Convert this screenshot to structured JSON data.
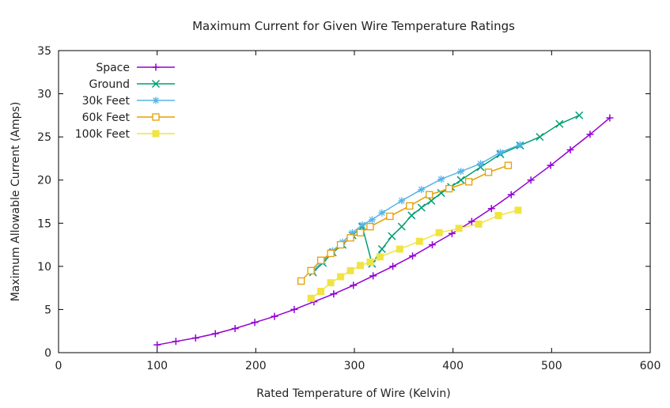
{
  "chart_data": {
    "type": "line",
    "title": "Maximum Current for Given Wire Temperature Ratings",
    "xlabel": "Rated Temperature of Wire (Kelvin)",
    "ylabel": "Maximum Allowable Current (Amps)",
    "xlim": [
      0,
      600
    ],
    "ylim": [
      0,
      35
    ],
    "xticks": [
      0,
      100,
      200,
      300,
      400,
      500,
      600
    ],
    "yticks": [
      0,
      5,
      10,
      15,
      20,
      25,
      30,
      35
    ],
    "grid": false,
    "legend_position": "top-left",
    "series": [
      {
        "name": "Space",
        "color": "#9400d3",
        "marker": "plus",
        "points": [
          [
            100,
            0.9
          ],
          [
            119,
            1.3
          ],
          [
            139,
            1.7
          ],
          [
            159,
            2.2
          ],
          [
            179,
            2.8
          ],
          [
            199,
            3.5
          ],
          [
            219,
            4.2
          ],
          [
            239,
            5.0
          ],
          [
            259,
            5.9
          ],
          [
            279,
            6.8
          ],
          [
            299,
            7.8
          ],
          [
            319,
            8.9
          ],
          [
            339,
            10.0
          ],
          [
            359,
            11.2
          ],
          [
            379,
            12.5
          ],
          [
            399,
            13.8
          ],
          [
            419,
            15.2
          ],
          [
            439,
            16.7
          ],
          [
            459,
            18.3
          ],
          [
            479,
            20.0
          ],
          [
            499,
            21.7
          ],
          [
            519,
            23.5
          ],
          [
            539,
            25.3
          ],
          [
            559,
            27.2
          ]
        ]
      },
      {
        "name": "Ground",
        "color": "#009e73",
        "marker": "cross",
        "points": [
          [
            258,
            9.3
          ],
          [
            268,
            10.4
          ],
          [
            278,
            11.6
          ],
          [
            288,
            12.5
          ],
          [
            298,
            13.6
          ],
          [
            308,
            14.6
          ],
          [
            318,
            10.3
          ],
          [
            328,
            12.0
          ],
          [
            338,
            13.5
          ],
          [
            348,
            14.6
          ],
          [
            358,
            15.9
          ],
          [
            368,
            16.8
          ],
          [
            378,
            17.6
          ],
          [
            388,
            18.5
          ],
          [
            398,
            19.2
          ],
          [
            408,
            20.0
          ],
          [
            428,
            21.5
          ],
          [
            448,
            23.0
          ],
          [
            468,
            24.0
          ],
          [
            488,
            25.0
          ],
          [
            508,
            26.5
          ],
          [
            528,
            27.5
          ]
        ]
      },
      {
        "name": "30k Feet",
        "color": "#56b4e9",
        "marker": "star",
        "points": [
          [
            258,
            9.5
          ],
          [
            268,
            10.6
          ],
          [
            278,
            11.8
          ],
          [
            288,
            12.8
          ],
          [
            298,
            13.9
          ],
          [
            308,
            14.8
          ],
          [
            318,
            15.4
          ],
          [
            328,
            16.2
          ],
          [
            348,
            17.6
          ],
          [
            368,
            18.9
          ],
          [
            388,
            20.1
          ],
          [
            408,
            21.0
          ],
          [
            428,
            21.9
          ],
          [
            448,
            23.2
          ],
          [
            468,
            24.1
          ]
        ]
      },
      {
        "name": "60k Feet",
        "color": "#e69f00",
        "marker": "box",
        "points": [
          [
            246,
            8.3
          ],
          [
            256,
            9.5
          ],
          [
            266,
            10.7
          ],
          [
            276,
            11.5
          ],
          [
            286,
            12.5
          ],
          [
            296,
            13.3
          ],
          [
            306,
            13.9
          ],
          [
            316,
            14.6
          ],
          [
            336,
            15.8
          ],
          [
            356,
            17.0
          ],
          [
            376,
            18.3
          ],
          [
            396,
            19.0
          ],
          [
            416,
            19.8
          ],
          [
            436,
            20.9
          ],
          [
            456,
            21.7
          ]
        ]
      },
      {
        "name": "100k Feet",
        "color": "#f0e442",
        "marker": "boxfilled",
        "points": [
          [
            256,
            6.3
          ],
          [
            266,
            7.1
          ],
          [
            276,
            8.1
          ],
          [
            286,
            8.8
          ],
          [
            296,
            9.5
          ],
          [
            306,
            10.1
          ],
          [
            316,
            10.5
          ],
          [
            326,
            11.1
          ],
          [
            346,
            12.0
          ],
          [
            366,
            12.9
          ],
          [
            386,
            13.9
          ],
          [
            406,
            14.4
          ],
          [
            426,
            14.9
          ],
          [
            446,
            15.9
          ],
          [
            466,
            16.5
          ]
        ]
      }
    ]
  }
}
